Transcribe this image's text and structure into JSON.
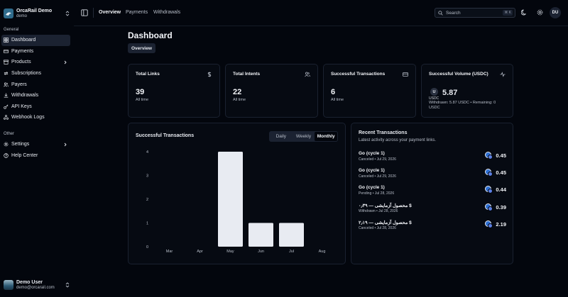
{
  "brand": {
    "name": "OrcaRail Demo",
    "sub": "demo"
  },
  "sidebar": {
    "general_label": "General",
    "general": [
      {
        "label": "Dashboard",
        "icon": "dashboard-icon",
        "active": true
      },
      {
        "label": "Payments",
        "icon": "card-icon"
      },
      {
        "label": "Products",
        "icon": "box-icon",
        "chevron": true
      },
      {
        "label": "Subscriptions",
        "icon": "repeat-icon"
      },
      {
        "label": "Payers",
        "icon": "users-icon"
      },
      {
        "label": "Withdrawals",
        "icon": "download-icon"
      },
      {
        "label": "API Keys",
        "icon": "key-icon"
      },
      {
        "label": "Webhook Logs",
        "icon": "webhook-icon"
      }
    ],
    "other_label": "Other",
    "other": [
      {
        "label": "Settings",
        "icon": "gear-icon",
        "chevron": true
      },
      {
        "label": "Help Center",
        "icon": "help-icon"
      }
    ]
  },
  "user": {
    "name": "Demo User",
    "email": "demo@orcarail.com"
  },
  "topbar": {
    "tabs": [
      "Overview",
      "Payments",
      "Withdrawals"
    ],
    "active_tab": "Overview",
    "search_placeholder": "Search",
    "search_shortcut": "⌘ K",
    "avatar_initials": "DU"
  },
  "page": {
    "title": "Dashboard",
    "sub_tab": "Overview"
  },
  "stats": [
    {
      "title": "Total Links",
      "value": "39",
      "sub": "All time",
      "icon": "dollar-icon"
    },
    {
      "title": "Total Intents",
      "value": "22",
      "sub": "All time",
      "icon": "users-icon"
    },
    {
      "title": "Successful Transactions",
      "value": "6",
      "sub": "All time",
      "icon": "card-icon"
    }
  ],
  "volume": {
    "title": "Successful Volume (USDC)",
    "badge": "U",
    "currency": "USDC",
    "value": "5.87",
    "detail": "Withdrawn: 5.87 USDC • Remaining: 0 USDC",
    "icon": "activity-icon"
  },
  "chart_panel": {
    "title": "Successful Transactions",
    "ranges": [
      "Daily",
      "Weekly",
      "Monthly"
    ],
    "active_range": "Monthly"
  },
  "chart_data": {
    "type": "bar",
    "categories": [
      "Mar",
      "Apr",
      "May",
      "Jun",
      "Jul",
      "Aug"
    ],
    "values": [
      0,
      0,
      4,
      1,
      1,
      0
    ],
    "yticks": [
      "0",
      "1",
      "2",
      "3",
      "4"
    ],
    "ylim": [
      0,
      4
    ],
    "bar_color": "#e8ebf2"
  },
  "recent": {
    "title": "Recent Transactions",
    "subtitle": "Latest activity across your payment links.",
    "items": [
      {
        "name": "Go (cycle 1)",
        "meta": "Canceled • Jul 29, 2026",
        "amount": "0.45"
      },
      {
        "name": "Go (cycle 1)",
        "meta": "Canceled • Jul 29, 2026",
        "amount": "0.45"
      },
      {
        "name": "Go (cycle 1)",
        "meta": "Pending • Jul 28, 2026",
        "amount": "0.44"
      },
      {
        "name": "محصول آزمایشی — ۰٫۳۹ $",
        "meta": "Withdrawn • Jul 28, 2026",
        "amount": "0.39"
      },
      {
        "name": "محصول آزمایشی — ۲٫۱۹ $",
        "meta": "Canceled • Jul 28, 2026",
        "amount": "2.19"
      }
    ]
  }
}
